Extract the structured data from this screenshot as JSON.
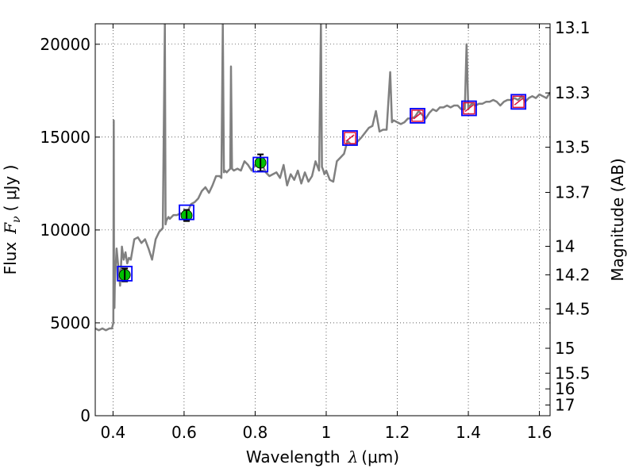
{
  "chart_data": {
    "type": "line",
    "xlabel": {
      "prefix": "Wavelength",
      "symbol": "λ",
      "unit": "(μm)"
    },
    "ylabel": {
      "prefix": "Flux",
      "symbol": "F",
      "subscript": "ν",
      "unit": "( μJy )"
    },
    "y2label": "Magnitude (AB)",
    "xlim": [
      0.35,
      1.63
    ],
    "ylim": [
      0,
      21100
    ],
    "xticks": [
      0.4,
      0.6,
      0.8,
      1.0,
      1.2,
      1.4,
      1.6
    ],
    "xtick_labels": [
      "0.4",
      "0.6",
      "0.8",
      "1",
      "1.2",
      "1.4",
      "1.6"
    ],
    "yticks": [
      0,
      5000,
      10000,
      15000,
      20000
    ],
    "ytick_labels": [
      "0",
      "5000",
      "10000",
      "15000",
      "20000"
    ],
    "y2ticks": [
      13.1,
      13.3,
      13.5,
      13.7,
      14,
      14.2,
      14.5,
      15,
      15.5,
      16,
      17
    ],
    "y2tick_labels": [
      "13.1",
      "13.3",
      "13.5",
      "13.7",
      "14",
      "14.2",
      "14.5",
      "15",
      "15.5",
      "16",
      "17"
    ],
    "grid": true,
    "colors": {
      "spectrum": "#808080",
      "model_box": "#0000ff",
      "observed_fill": "#00c000",
      "upper_limit_box": "#dc143c",
      "errorbar": "#000000"
    },
    "series": [
      {
        "kind": "spectrum",
        "x": [
          0.35,
          0.36,
          0.37,
          0.38,
          0.39,
          0.397,
          0.401,
          0.402,
          0.403,
          0.404,
          0.405,
          0.41,
          0.42,
          0.425,
          0.43,
          0.435,
          0.44,
          0.445,
          0.45,
          0.46,
          0.47,
          0.48,
          0.49,
          0.5,
          0.51,
          0.52,
          0.53,
          0.54,
          0.546,
          0.548,
          0.55,
          0.556,
          0.56,
          0.57,
          0.58,
          0.59,
          0.6,
          0.61,
          0.62,
          0.63,
          0.64,
          0.65,
          0.66,
          0.67,
          0.68,
          0.69,
          0.7,
          0.705,
          0.709,
          0.712,
          0.715,
          0.72,
          0.73,
          0.732,
          0.735,
          0.74,
          0.75,
          0.76,
          0.77,
          0.78,
          0.79,
          0.8,
          0.81,
          0.82,
          0.83,
          0.84,
          0.85,
          0.86,
          0.87,
          0.88,
          0.89,
          0.9,
          0.91,
          0.92,
          0.93,
          0.94,
          0.95,
          0.96,
          0.97,
          0.98,
          0.985,
          0.988,
          0.992,
          0.995,
          1.0,
          1.01,
          1.02,
          1.03,
          1.04,
          1.05,
          1.06,
          1.07,
          1.08,
          1.09,
          1.1,
          1.12,
          1.13,
          1.14,
          1.15,
          1.16,
          1.17,
          1.18,
          1.185,
          1.19,
          1.2,
          1.21,
          1.22,
          1.23,
          1.24,
          1.25,
          1.26,
          1.27,
          1.28,
          1.29,
          1.3,
          1.31,
          1.32,
          1.33,
          1.34,
          1.35,
          1.36,
          1.37,
          1.38,
          1.39,
          1.395,
          1.4,
          1.405,
          1.41,
          1.42,
          1.43,
          1.44,
          1.45,
          1.46,
          1.47,
          1.48,
          1.49,
          1.5,
          1.51,
          1.52,
          1.53,
          1.54,
          1.55,
          1.56,
          1.57,
          1.58,
          1.59,
          1.6,
          1.61,
          1.62,
          1.63
        ],
        "y": [
          4700,
          4600,
          4700,
          4600,
          4700,
          4700,
          5000,
          15900,
          6000,
          5800,
          7000,
          9000,
          7000,
          9100,
          8400,
          8800,
          8200,
          8500,
          8400,
          9500,
          9600,
          9300,
          9500,
          9000,
          8400,
          9500,
          9900,
          10100,
          21100,
          10300,
          10500,
          10700,
          10600,
          10800,
          10800,
          10900,
          10700,
          11000,
          11400,
          11500,
          11700,
          12100,
          12300,
          12000,
          12400,
          12900,
          12900,
          12800,
          21100,
          13100,
          13200,
          13100,
          13300,
          18800,
          13300,
          13200,
          13300,
          13200,
          13700,
          13500,
          13200,
          13500,
          13400,
          13500,
          13100,
          12900,
          13000,
          13100,
          12800,
          13500,
          12400,
          13000,
          12700,
          13200,
          12500,
          13100,
          12600,
          12900,
          13700,
          13200,
          21100,
          13400,
          13200,
          13000,
          13200,
          12700,
          12600,
          13700,
          13900,
          14100,
          14800,
          14600,
          14600,
          14800,
          15000,
          15500,
          15600,
          16400,
          15300,
          15400,
          15400,
          18500,
          15800,
          15900,
          15800,
          15700,
          15800,
          16000,
          16000,
          16100,
          16400,
          16200,
          16000,
          16300,
          16500,
          16400,
          16600,
          16600,
          16700,
          16600,
          16700,
          16700,
          16500,
          16500,
          20000,
          16500,
          16700,
          16800,
          16700,
          16800,
          16800,
          16900,
          16900,
          17000,
          16900,
          16700,
          16900,
          17000,
          17000,
          17100,
          17000,
          17200,
          16900,
          17100,
          17200,
          17100,
          17300,
          17200,
          17100,
          17400
        ]
      },
      {
        "kind": "model_points",
        "x": [
          0.433,
          0.607,
          0.815,
          1.067,
          1.257,
          1.402,
          1.541
        ],
        "y": [
          7650,
          10950,
          13520,
          14950,
          16150,
          16550,
          16900
        ]
      },
      {
        "kind": "observed_points",
        "x": [
          0.433,
          0.607,
          0.815
        ],
        "y": [
          7580,
          10780,
          13620
        ],
        "err": [
          350,
          300,
          450
        ]
      },
      {
        "kind": "upper_limits",
        "x": [
          1.067,
          1.257,
          1.402,
          1.541
        ],
        "y": [
          14950,
          16150,
          16550,
          16900
        ]
      }
    ]
  }
}
